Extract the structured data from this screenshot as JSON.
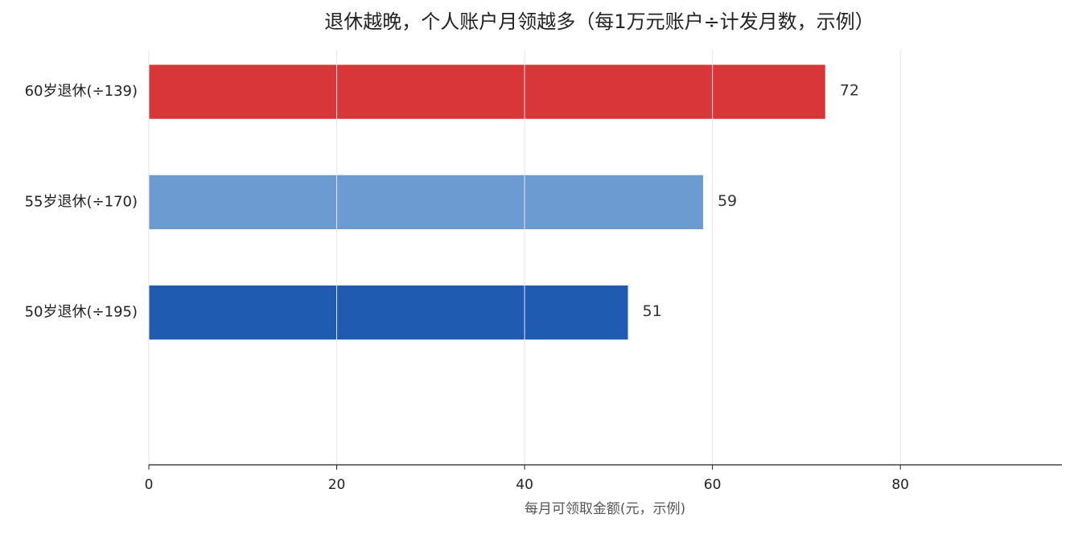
{
  "chart_data": {
    "type": "barh",
    "title": "退休越晚，个人账户月领越多（每1万元账户÷计发月数，示例）",
    "xlabel": "每月可领取金额(元，示例)",
    "categories": [
      "60岁退休(÷139)",
      "55岁退休(÷170)",
      "50岁退休(÷195)"
    ],
    "values": [
      72,
      59,
      51
    ],
    "colors": [
      "#d9363a",
      "#6c9bd2",
      "#1f5bb0"
    ],
    "xlim": [
      0,
      97.2
    ],
    "xticks": [
      0,
      20,
      40,
      60,
      80
    ],
    "grid": true
  }
}
